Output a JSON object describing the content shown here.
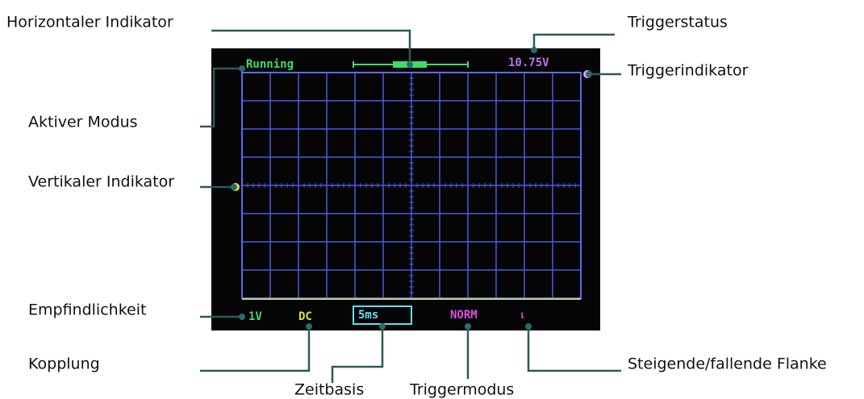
{
  "screen": {
    "mode": "Running",
    "trigger_status": "10.75V",
    "sensitivity": "1V",
    "coupling": "DC",
    "timebase": "5ms",
    "trigger_mode": "NORM",
    "edge": "⇂"
  },
  "callouts": {
    "horizontal_indicator": "Horizontaler Indikator",
    "trigger_status": "Triggerstatus",
    "trigger_indicator": "Triggerindikator",
    "active_mode": "Aktiver Modus",
    "vertical_indicator": "Vertikaler Indikator",
    "sensitivity": "Empfindlichkeit",
    "coupling": "Kopplung",
    "timebase": "Zeitbasis",
    "trigger_mode": "Triggermodus",
    "edge": "Steigende/fallende Flanke"
  }
}
